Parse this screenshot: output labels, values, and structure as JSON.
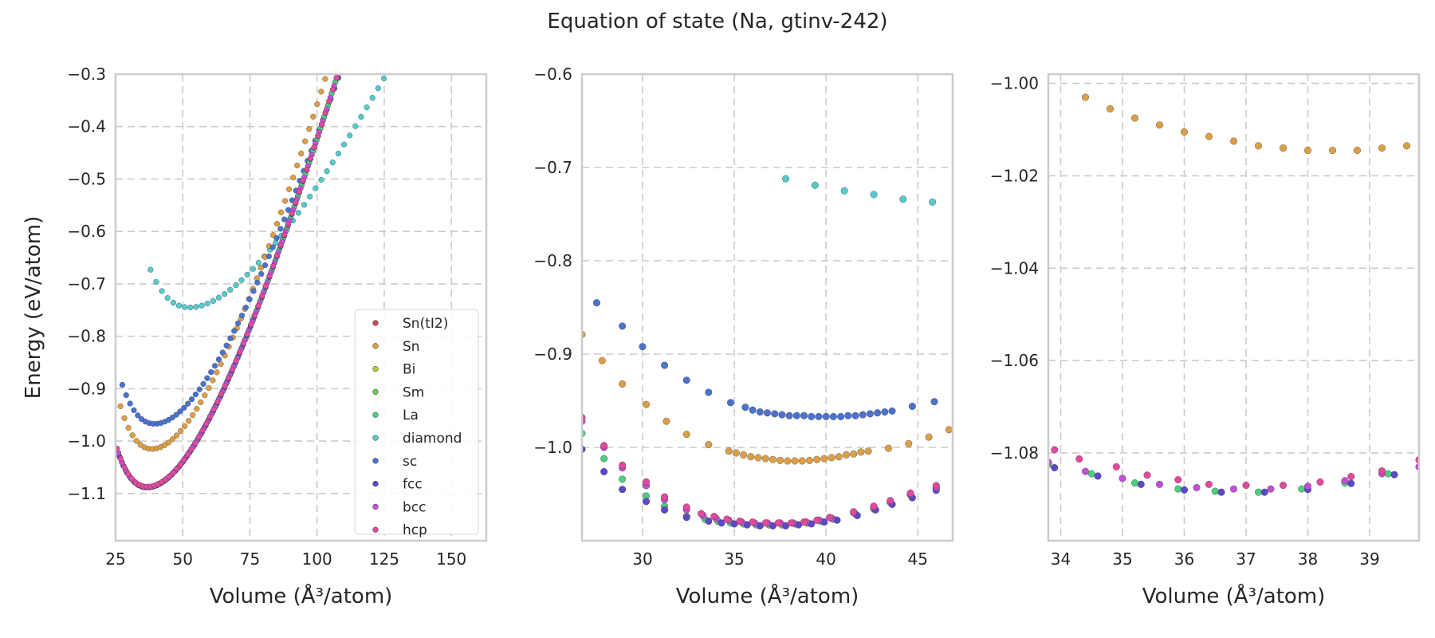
{
  "figure": {
    "title": "Equation of state (Na, gtinv-242)"
  },
  "colors": {
    "Sn(tI2)": "#c44e52",
    "Sn": "#dd9f45",
    "Bi": "#b7c93a",
    "Sm": "#71c84a",
    "La": "#4ccf80",
    "diamond": "#55cbcd",
    "sc": "#4c72d0",
    "fcc": "#5d48c8",
    "bcc": "#c34fd8",
    "hcp": "#e14a9c",
    "grid": "#cccccc",
    "spine": "#cccccc"
  },
  "legend": [
    "Sn(tI2)",
    "Sn",
    "Bi",
    "Sm",
    "La",
    "diamond",
    "sc",
    "fcc",
    "bcc",
    "hcp"
  ],
  "chart_data": [
    {
      "type": "scatter",
      "title": "",
      "xlabel": "Volume (Å³/atom)",
      "ylabel": "Energy (eV/atom)",
      "xlim": [
        25,
        163
      ],
      "ylim": [
        -1.19,
        -0.3
      ],
      "xticks": [
        "25",
        "50",
        "75",
        "100",
        "125",
        "150"
      ],
      "yticks": [
        "−0.3",
        "−0.4",
        "−0.5",
        "−0.6",
        "−0.7",
        "−0.8",
        "−0.9",
        "−1.0",
        "−1.1"
      ],
      "grid": true,
      "legend_position": "lower right",
      "series": [
        {
          "name": "diamond",
          "curve": {
            "v0": 52.5,
            "e0": -0.745,
            "k": 0.000183,
            "lin": -2e-05,
            "vmin": 38,
            "vmax": 163,
            "n": 60
          }
        },
        {
          "name": "Sn",
          "curve": {
            "v0": 38.5,
            "e0": -1.015,
            "k": 0.00035,
            "lin": 0.00025,
            "vmin": 26.8,
            "vmax": 112,
            "n": 58
          }
        },
        {
          "name": "sc",
          "curve": {
            "v0": 39.5,
            "e0": -0.967,
            "k": 0.0003,
            "lin": 0.00052,
            "vmin": 27.5,
            "vmax": 118,
            "n": 64
          }
        },
        {
          "name": "Sm",
          "curve": {
            "v0": 36.8,
            "e0": -1.088,
            "k": 0.00034,
            "lin": 0.00025,
            "vmin": 26,
            "vmax": 111,
            "n": 62
          }
        },
        {
          "name": "La",
          "curve": {
            "v0": 36.8,
            "e0": -1.088,
            "k": 0.00034,
            "lin": 0.00025,
            "vmin": 26,
            "vmax": 111,
            "n": 62
          }
        },
        {
          "name": "fcc",
          "curve": {
            "v0": 36.8,
            "e0": -1.0885,
            "k": 0.00034,
            "lin": 0.00025,
            "vmin": 26.5,
            "vmax": 111.5,
            "n": 62
          }
        },
        {
          "name": "bcc",
          "curve": {
            "v0": 36.8,
            "e0": -1.088,
            "k": 0.00034,
            "lin": 0.00025,
            "vmin": 26,
            "vmax": 110.5,
            "n": 62
          }
        },
        {
          "name": "hcp",
          "curve": {
            "v0": 36.8,
            "e0": -1.087,
            "k": 0.00034,
            "lin": 0.00025,
            "vmin": 25.5,
            "vmax": 110,
            "n": 62
          }
        }
      ]
    },
    {
      "type": "scatter",
      "title": "",
      "xlabel": "Volume (Å³/atom)",
      "ylabel": "",
      "xlim": [
        26.7,
        46.9
      ],
      "ylim": [
        -1.1,
        -0.6
      ],
      "xticks": [
        "30",
        "35",
        "40",
        "45"
      ],
      "yticks": [
        "−0.6",
        "−0.7",
        "−0.8",
        "−0.9",
        "−1.0"
      ],
      "grid": true,
      "series": [
        {
          "name": "diamond",
          "x": [
            37.8,
            39.4,
            41.0,
            42.6,
            44.2,
            45.8
          ],
          "y": [
            -0.712,
            -0.719,
            -0.725,
            -0.729,
            -0.734,
            -0.737
          ]
        },
        {
          "name": "Sn",
          "x": [
            26.7,
            27.8,
            28.9,
            30.2,
            31.3,
            32.4,
            33.6,
            34.7,
            35.1,
            35.5,
            35.9,
            36.3,
            36.7,
            37.1,
            37.5,
            37.9,
            38.3,
            38.7,
            39.1,
            39.5,
            39.9,
            40.3,
            40.7,
            41.1,
            41.5,
            41.9,
            42.3,
            43.4,
            44.5,
            45.6,
            46.7
          ],
          "y": [
            -0.879,
            -0.907,
            -0.932,
            -0.954,
            -0.972,
            -0.986,
            -0.997,
            -1.004,
            -1.006,
            -1.008,
            -1.01,
            -1.011,
            -1.012,
            -1.013,
            -1.014,
            -1.0145,
            -1.0145,
            -1.0145,
            -1.014,
            -1.013,
            -1.012,
            -1.011,
            -1.01,
            -1.008,
            -1.007,
            -1.005,
            -1.004,
            -1.001,
            -0.996,
            -0.989,
            -0.981
          ]
        },
        {
          "name": "sc",
          "x": [
            27.5,
            28.9,
            30.0,
            31.2,
            32.4,
            33.6,
            34.8,
            35.6,
            36.0,
            36.4,
            36.8,
            37.2,
            37.6,
            38.0,
            38.4,
            38.8,
            39.2,
            39.6,
            40.0,
            40.4,
            40.8,
            41.2,
            41.6,
            42.0,
            42.4,
            42.8,
            43.2,
            43.6,
            44.7,
            45.9
          ],
          "y": [
            -0.845,
            -0.87,
            -0.892,
            -0.912,
            -0.928,
            -0.941,
            -0.952,
            -0.957,
            -0.96,
            -0.962,
            -0.963,
            -0.964,
            -0.965,
            -0.966,
            -0.966,
            -0.966,
            -0.967,
            -0.967,
            -0.967,
            -0.967,
            -0.967,
            -0.966,
            -0.966,
            -0.965,
            -0.964,
            -0.963,
            -0.962,
            -0.961,
            -0.956,
            -0.951
          ]
        },
        {
          "name": "La",
          "x": [
            26.7,
            27.9,
            28.9,
            30.2,
            31.2,
            32.4,
            33.4,
            34.1,
            34.8,
            35.5,
            36.2,
            36.9,
            37.6,
            38.3,
            39.0,
            39.7,
            40.4,
            41.6,
            42.6,
            43.5,
            44.6,
            46.0
          ],
          "y": [
            -0.985,
            -1.012,
            -1.034,
            -1.052,
            -1.063,
            -1.074,
            -1.077,
            -1.079,
            -1.081,
            -1.082,
            -1.083,
            -1.083,
            -1.083,
            -1.082,
            -1.081,
            -1.079,
            -1.077,
            -1.071,
            -1.066,
            -1.059,
            -1.051,
            -1.044
          ]
        },
        {
          "name": "fcc",
          "x": [
            26.7,
            27.9,
            28.9,
            30.2,
            31.2,
            32.4,
            33.6,
            34.3,
            35.0,
            35.7,
            36.4,
            37.1,
            37.8,
            38.5,
            39.2,
            39.9,
            40.6,
            41.7,
            42.7,
            43.6,
            44.7,
            46.0
          ],
          "y": [
            -1.002,
            -1.026,
            -1.045,
            -1.058,
            -1.067,
            -1.075,
            -1.079,
            -1.081,
            -1.082,
            -1.083,
            -1.084,
            -1.084,
            -1.084,
            -1.083,
            -1.082,
            -1.08,
            -1.078,
            -1.073,
            -1.067,
            -1.061,
            -1.054,
            -1.046
          ]
        },
        {
          "name": "bcc",
          "x": [
            26.7,
            27.9,
            28.9,
            30.2,
            31.2,
            32.4,
            33.3,
            34.0,
            34.7,
            35.4,
            36.1,
            36.8,
            37.5,
            38.2,
            38.9,
            39.6,
            40.3,
            41.5,
            42.6,
            43.5,
            44.6,
            46.0
          ],
          "y": [
            -0.972,
            -1.0,
            -1.022,
            -1.041,
            -1.056,
            -1.067,
            -1.073,
            -1.076,
            -1.078,
            -1.08,
            -1.081,
            -1.081,
            -1.081,
            -1.081,
            -1.08,
            -1.078,
            -1.076,
            -1.07,
            -1.064,
            -1.058,
            -1.05,
            -1.043
          ]
        },
        {
          "name": "hcp",
          "x": [
            26.7,
            27.9,
            28.9,
            30.2,
            31.2,
            32.4,
            33.2,
            33.9,
            34.6,
            35.3,
            36.0,
            36.7,
            37.4,
            38.1,
            38.8,
            39.5,
            40.2,
            41.5,
            42.6,
            43.5,
            44.6,
            46.0
          ],
          "y": [
            -0.968,
            -0.998,
            -1.019,
            -1.037,
            -1.053,
            -1.064,
            -1.071,
            -1.074,
            -1.077,
            -1.079,
            -1.08,
            -1.081,
            -1.081,
            -1.081,
            -1.08,
            -1.078,
            -1.075,
            -1.069,
            -1.063,
            -1.057,
            -1.049,
            -1.041
          ]
        }
      ]
    },
    {
      "type": "scatter",
      "title": "",
      "xlabel": "Volume (Å³/atom)",
      "ylabel": "",
      "xlim": [
        33.8,
        39.8
      ],
      "ylim": [
        -1.099,
        -0.998
      ],
      "xticks": [
        "34",
        "35",
        "36",
        "37",
        "38",
        "39"
      ],
      "yticks": [
        "−1.00",
        "−1.02",
        "−1.04",
        "−1.06",
        "−1.08"
      ],
      "grid": true,
      "series": [
        {
          "name": "Sn",
          "x": [
            34.4,
            34.8,
            35.2,
            35.6,
            36.0,
            36.4,
            36.8,
            37.2,
            37.6,
            38.0,
            38.4,
            38.8,
            39.2,
            39.6
          ],
          "y": [
            -1.003,
            -1.0055,
            -1.0075,
            -1.009,
            -1.0105,
            -1.0115,
            -1.0125,
            -1.0135,
            -1.014,
            -1.0145,
            -1.0145,
            -1.0145,
            -1.014,
            -1.0135
          ]
        },
        {
          "name": "La",
          "x": [
            33.8,
            34.5,
            35.2,
            35.9,
            36.5,
            37.2,
            37.9,
            38.6,
            39.3
          ],
          "y": [
            -1.0825,
            -1.0845,
            -1.0865,
            -1.0878,
            -1.0883,
            -1.0885,
            -1.0878,
            -1.0865,
            -1.0845
          ]
        },
        {
          "name": "fcc",
          "x": [
            33.9,
            34.6,
            35.3,
            36.0,
            36.6,
            37.3,
            38.0,
            38.7,
            39.4
          ],
          "y": [
            -1.0832,
            -1.085,
            -1.0868,
            -1.088,
            -1.0885,
            -1.0885,
            -1.0879,
            -1.0866,
            -1.0847
          ]
        },
        {
          "name": "bcc",
          "x": [
            33.8,
            34.4,
            35.0,
            35.6,
            36.2,
            36.8,
            37.4,
            38.0,
            38.6,
            39.2,
            39.8
          ],
          "y": [
            -1.082,
            -1.084,
            -1.0855,
            -1.0868,
            -1.0875,
            -1.0878,
            -1.0878,
            -1.0872,
            -1.086,
            -1.0845,
            -1.083
          ]
        },
        {
          "name": "hcp",
          "x": [
            33.9,
            34.3,
            34.9,
            35.4,
            35.9,
            36.4,
            37.0,
            37.6,
            38.2,
            38.7,
            39.2,
            39.8
          ],
          "y": [
            -1.0793,
            -1.0813,
            -1.083,
            -1.0848,
            -1.0858,
            -1.0868,
            -1.087,
            -1.087,
            -1.0863,
            -1.0851,
            -1.0839,
            -1.0815
          ]
        }
      ]
    }
  ]
}
